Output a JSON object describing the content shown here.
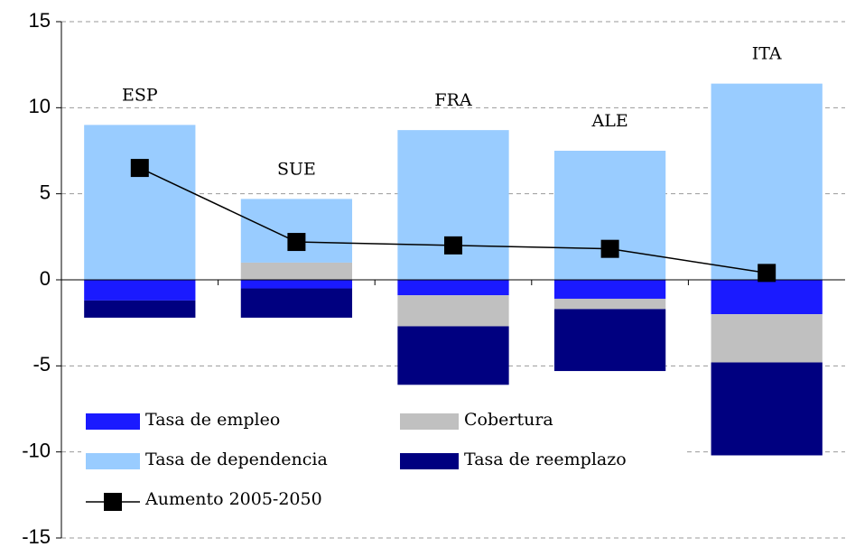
{
  "chart_data": {
    "type": "bar",
    "stacked": true,
    "categories": [
      "ESP",
      "SUE",
      "FRA",
      "ALE",
      "ITA"
    ],
    "series": [
      {
        "name": "Tasa de empleo",
        "color": "#1a1aff",
        "values": [
          -1.2,
          -0.5,
          -0.9,
          -1.1,
          -2.0
        ]
      },
      {
        "name": "Cobertura",
        "color": "#c0c0c0",
        "values": [
          0,
          1.0,
          -1.8,
          -0.6,
          -2.8
        ]
      },
      {
        "name": "Tasa de dependencia",
        "color": "#99ccff",
        "values": [
          9.0,
          3.7,
          8.7,
          7.5,
          11.4
        ]
      },
      {
        "name": "Tasa de reemplazo",
        "color": "#000080",
        "values": [
          -1.0,
          -1.7,
          -3.4,
          -3.6,
          -5.4
        ]
      },
      {
        "name": "Aumento 2005-2050",
        "color": "#000000",
        "type": "line",
        "values": [
          6.5,
          2.2,
          2.0,
          1.8,
          0.4
        ]
      }
    ],
    "ylim": [
      -15,
      15
    ],
    "yticks": [
      -15,
      -10,
      -5,
      0,
      5,
      10,
      15
    ],
    "grid": true,
    "legend": "lower left"
  }
}
